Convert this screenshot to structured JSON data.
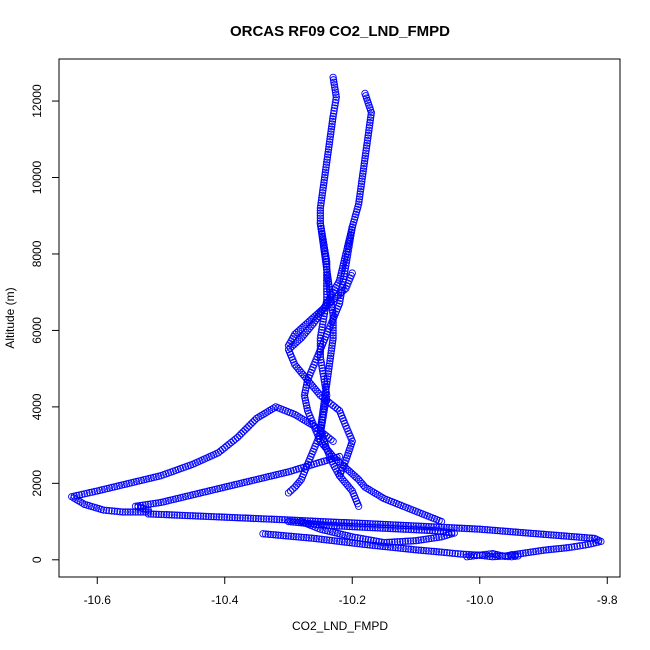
{
  "chart_data": {
    "type": "scatter",
    "title": "ORCAS RF09 CO2_LND_FMPD",
    "xlabel": "CO2_LND_FMPD",
    "ylabel": "Altitude (m)",
    "xlim": [
      -10.66,
      -9.78
    ],
    "ylim": [
      -450,
      13100
    ],
    "xticks": [
      -10.6,
      -10.4,
      -10.2,
      -10.0,
      -9.8
    ],
    "xtick_labels": [
      "-10.6",
      "-10.4",
      "-10.2",
      "-10.0",
      "-9.8"
    ],
    "yticks": [
      0,
      2000,
      4000,
      6000,
      8000,
      10000,
      12000
    ],
    "ytick_labels": [
      "0",
      "2000",
      "4000",
      "6000",
      "8000",
      "10000",
      "12000"
    ],
    "marker": "open-circle",
    "color": "#0000ff",
    "grid": false,
    "series": [
      {
        "points": [
          [
            -10.23,
            12620
          ],
          [
            -10.225,
            12100
          ],
          [
            -10.23,
            11600
          ],
          [
            -10.235,
            11000
          ],
          [
            -10.24,
            10400
          ],
          [
            -10.245,
            9800
          ],
          [
            -10.25,
            9200
          ],
          [
            -10.25,
            8800
          ],
          [
            -10.245,
            8300
          ],
          [
            -10.24,
            7800
          ],
          [
            -10.24,
            7300
          ],
          [
            -10.24,
            6800
          ],
          [
            -10.245,
            6300
          ],
          [
            -10.25,
            5800
          ],
          [
            -10.25,
            5300
          ],
          [
            -10.245,
            4800
          ],
          [
            -10.24,
            4300
          ],
          [
            -10.245,
            3800
          ],
          [
            -10.25,
            3300
          ],
          [
            -10.26,
            2900
          ],
          [
            -10.27,
            2500
          ],
          [
            -10.28,
            2100
          ],
          [
            -10.29,
            1900
          ],
          [
            -10.3,
            1750
          ]
        ]
      },
      {
        "points": [
          [
            -10.18,
            12200
          ],
          [
            -10.17,
            11700
          ],
          [
            -10.175,
            11100
          ],
          [
            -10.18,
            10500
          ],
          [
            -10.185,
            9900
          ],
          [
            -10.19,
            9300
          ],
          [
            -10.2,
            8700
          ],
          [
            -10.205,
            8200
          ],
          [
            -10.21,
            7700
          ],
          [
            -10.215,
            7200
          ],
          [
            -10.22,
            6700
          ],
          [
            -10.23,
            6300
          ],
          [
            -10.24,
            5900
          ],
          [
            -10.25,
            5500
          ],
          [
            -10.26,
            5100
          ],
          [
            -10.27,
            4700
          ],
          [
            -10.275,
            4300
          ],
          [
            -10.27,
            3900
          ],
          [
            -10.26,
            3500
          ],
          [
            -10.25,
            3100
          ],
          [
            -10.23,
            2700
          ],
          [
            -10.21,
            2400
          ],
          [
            -10.19,
            2100
          ],
          [
            -10.18,
            1900
          ],
          [
            -10.15,
            1600
          ],
          [
            -10.12,
            1400
          ],
          [
            -10.09,
            1200
          ],
          [
            -10.06,
            1000
          ]
        ]
      },
      {
        "points": [
          [
            -10.25,
            8800
          ],
          [
            -10.245,
            8200
          ],
          [
            -10.24,
            7600
          ],
          [
            -10.235,
            7000
          ],
          [
            -10.23,
            6400
          ],
          [
            -10.23,
            5800
          ],
          [
            -10.235,
            5200
          ],
          [
            -10.24,
            4600
          ],
          [
            -10.245,
            4000
          ],
          [
            -10.25,
            3400
          ],
          [
            -10.24,
            2900
          ],
          [
            -10.23,
            2500
          ],
          [
            -10.22,
            2200
          ],
          [
            -10.2,
            1800
          ],
          [
            -10.19,
            1400
          ]
        ]
      },
      {
        "points": [
          [
            -10.2,
            8700
          ],
          [
            -10.21,
            8000
          ],
          [
            -10.22,
            7300
          ],
          [
            -10.24,
            6700
          ],
          [
            -10.26,
            6200
          ],
          [
            -10.28,
            5800
          ],
          [
            -10.3,
            5500
          ],
          [
            -10.29,
            5100
          ],
          [
            -10.27,
            4700
          ],
          [
            -10.25,
            4300
          ],
          [
            -10.22,
            3900
          ],
          [
            -10.21,
            3500
          ],
          [
            -10.2,
            3100
          ],
          [
            -10.21,
            2600
          ],
          [
            -10.22,
            2200
          ]
        ]
      },
      {
        "points": [
          [
            -10.3,
            5600
          ],
          [
            -10.29,
            5900
          ],
          [
            -10.27,
            6200
          ],
          [
            -10.25,
            6500
          ],
          [
            -10.23,
            6800
          ],
          [
            -10.21,
            7100
          ],
          [
            -10.2,
            7500
          ]
        ]
      },
      {
        "points": [
          [
            -10.23,
            3100
          ],
          [
            -10.26,
            3500
          ],
          [
            -10.29,
            3800
          ],
          [
            -10.32,
            4000
          ],
          [
            -10.35,
            3700
          ],
          [
            -10.38,
            3200
          ],
          [
            -10.41,
            2800
          ],
          [
            -10.45,
            2500
          ],
          [
            -10.5,
            2200
          ],
          [
            -10.55,
            2000
          ],
          [
            -10.6,
            1800
          ],
          [
            -10.64,
            1650
          ],
          [
            -10.62,
            1450
          ],
          [
            -10.59,
            1300
          ],
          [
            -10.56,
            1250
          ],
          [
            -10.52,
            1250
          ],
          [
            -10.52,
            1300
          ],
          [
            -10.54,
            1400
          ],
          [
            -10.5,
            1500
          ],
          [
            -10.45,
            1700
          ],
          [
            -10.4,
            1900
          ],
          [
            -10.35,
            2100
          ],
          [
            -10.3,
            2300
          ],
          [
            -10.26,
            2500
          ],
          [
            -10.22,
            2700
          ]
        ]
      },
      {
        "points": [
          [
            -10.52,
            1200
          ],
          [
            -10.45,
            1150
          ],
          [
            -10.38,
            1100
          ],
          [
            -10.31,
            1050
          ],
          [
            -10.25,
            1000
          ],
          [
            -10.18,
            950
          ],
          [
            -10.12,
            900
          ],
          [
            -10.06,
            850
          ],
          [
            -10.0,
            800
          ],
          [
            -9.94,
            720
          ],
          [
            -9.88,
            640
          ],
          [
            -9.82,
            560
          ],
          [
            -9.81,
            480
          ],
          [
            -9.83,
            400
          ],
          [
            -9.86,
            320
          ],
          [
            -9.9,
            250
          ],
          [
            -9.94,
            150
          ],
          [
            -9.96,
            100
          ],
          [
            -9.98,
            80
          ],
          [
            -10.0,
            120
          ],
          [
            -10.03,
            150
          ],
          [
            -10.06,
            200
          ],
          [
            -10.1,
            260
          ],
          [
            -10.14,
            330
          ],
          [
            -10.18,
            400
          ],
          [
            -10.22,
            480
          ],
          [
            -10.26,
            560
          ],
          [
            -10.3,
            620
          ],
          [
            -10.34,
            680
          ]
        ]
      },
      {
        "points": [
          [
            -10.02,
            80
          ],
          [
            -10.01,
            100
          ],
          [
            -10.0,
            120
          ],
          [
            -9.99,
            140
          ],
          [
            -9.98,
            160
          ],
          [
            -9.97,
            120
          ],
          [
            -9.96,
            90
          ],
          [
            -9.95,
            80
          ],
          [
            -9.94,
            100
          ],
          [
            -9.95,
            130
          ]
        ]
      },
      {
        "points": [
          [
            -10.3,
            1000
          ],
          [
            -10.24,
            900
          ],
          [
            -10.18,
            850
          ],
          [
            -10.12,
            800
          ],
          [
            -10.07,
            760
          ],
          [
            -10.04,
            700
          ],
          [
            -10.06,
            600
          ],
          [
            -10.1,
            500
          ],
          [
            -10.15,
            450
          ],
          [
            -10.2,
            600
          ],
          [
            -10.25,
            800
          ],
          [
            -10.28,
            1000
          ]
        ]
      }
    ]
  }
}
